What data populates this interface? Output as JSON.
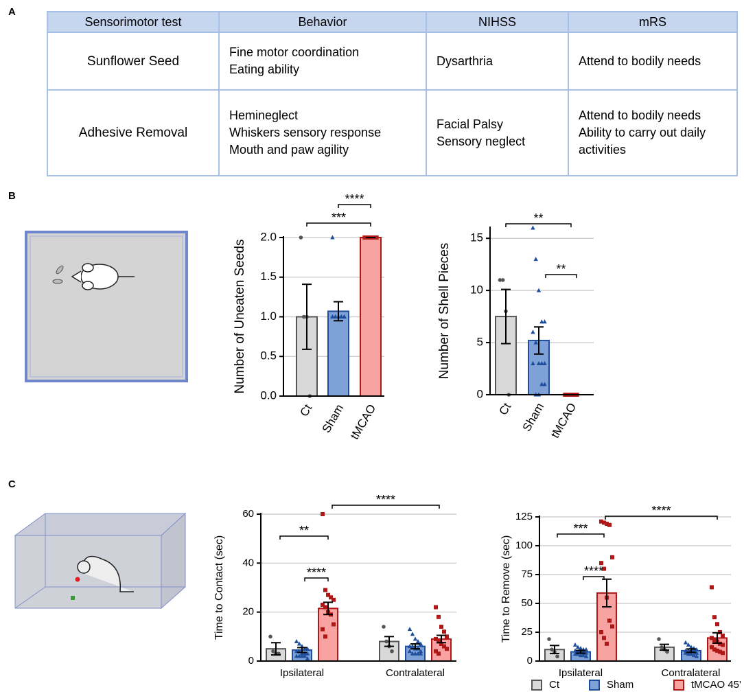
{
  "panels": [
    "A",
    "B",
    "C"
  ],
  "table": {
    "headers": [
      "Sensorimotor test",
      "Behavior",
      "NIHSS",
      "mRS"
    ],
    "rows": [
      [
        [
          "Sunflower Seed"
        ],
        [
          "Fine motor coordination",
          "Eating ability"
        ],
        [
          "Dysarthria"
        ],
        [
          "Attend to bodily needs"
        ]
      ],
      [
        [
          "Adhesive Removal"
        ],
        [
          "Hemineglect",
          "Whiskers sensory response",
          "Mouth and paw agility"
        ],
        [
          "Facial Palsy",
          "Sensory neglect"
        ],
        [
          "Attend to bodily needs",
          "Ability to carry out daily",
          "activities"
        ]
      ]
    ]
  },
  "chart_data": [
    {
      "type": "bar",
      "y_label": "Number of Uneaten Seeds",
      "categories": [
        "Ct",
        "Sham",
        "tMCAO"
      ],
      "values": [
        1.0,
        1.07,
        2.0
      ],
      "errors": [
        0.41,
        0.12,
        0
      ],
      "colors": [
        "#d9d9d9",
        "#7ea1d8",
        "#f8a2a2"
      ],
      "edge_colors": [
        "#555555",
        "#1f4e9c",
        "#b01818"
      ],
      "points": [
        [
          2,
          1,
          1,
          0
        ],
        [
          2,
          1,
          1,
          1,
          1,
          1,
          1,
          1,
          1,
          1,
          1,
          1,
          1,
          1,
          1
        ],
        [
          2,
          2,
          2,
          2,
          2,
          2,
          2,
          2,
          2,
          2,
          2,
          2
        ]
      ],
      "ylim": [
        0,
        2
      ],
      "yticks": [
        {
          "value": 0,
          "label": "0.0"
        },
        {
          "value": 0.5,
          "label": "0.5"
        },
        {
          "value": 1,
          "label": "1.0"
        },
        {
          "value": 1.5,
          "label": "1.5"
        },
        {
          "value": 2,
          "label": "2.0"
        }
      ],
      "grid": true,
      "significance": [
        "****",
        "***"
      ]
    },
    {
      "type": "bar",
      "y_label": "Number of Shell Pieces",
      "categories": [
        "Ct",
        "Sham",
        "tMCAO"
      ],
      "values": [
        7.5,
        5.2,
        0
      ],
      "errors": [
        2.6,
        1.3,
        0
      ],
      "colors": [
        "#d9d9d9",
        "#7ea1d8",
        "#f8a2a2"
      ],
      "edge_colors": [
        "#555555",
        "#1f4e9c",
        "#b01818"
      ],
      "points": [
        [
          11,
          11,
          8,
          0
        ],
        [
          16,
          13,
          10,
          7,
          7,
          6,
          5,
          3,
          3,
          3,
          3,
          0,
          0,
          1,
          1
        ],
        [
          0,
          0,
          0,
          0,
          0,
          0,
          0,
          0,
          0,
          0,
          0,
          0
        ]
      ],
      "ylim": [
        0,
        16
      ],
      "yticks": [
        0,
        5,
        10,
        15
      ],
      "grid": true,
      "significance": [
        "**",
        "**"
      ]
    },
    {
      "type": "bar",
      "y_label": "Time to Contact (sec)",
      "categories": [
        "Ipsilateral",
        "Contralateral"
      ],
      "series": [
        {
          "color": "#d9d9d9",
          "edge_color": "#555555",
          "values": [
            5,
            8
          ],
          "errors": [
            2.5,
            2
          ],
          "points": [
            [
              10,
              4,
              3,
              3
            ],
            [
              14,
              8,
              6,
              4
            ]
          ]
        },
        {
          "color": "#7ea1d8",
          "edge_color": "#1f4e9c",
          "values": [
            4.5,
            6
          ],
          "errors": [
            1,
            1
          ],
          "points": [
            [
              8,
              7,
              6,
              5,
              5,
              4,
              4,
              3,
              3,
              3,
              2,
              2,
              2,
              2,
              1
            ],
            [
              13,
              11,
              9,
              8,
              7,
              6,
              6,
              5,
              5,
              4,
              4,
              3,
              3,
              3,
              3
            ]
          ]
        },
        {
          "color": "#f8a2a2",
          "edge_color": "#b01818",
          "values": [
            21.5,
            9
          ],
          "errors": [
            2.5,
            1.5
          ],
          "points": [
            [
              60,
              29,
              27,
              26,
              25,
              23,
              22,
              20,
              19,
              15,
              13,
              10
            ],
            [
              22,
              18,
              14,
              12,
              10,
              9,
              8,
              7,
              6,
              5,
              4,
              3
            ]
          ]
        }
      ],
      "ylim": [
        0,
        60
      ],
      "yticks": [
        0,
        20,
        40,
        60
      ],
      "grid": true,
      "significance": [
        "**",
        "****",
        "****"
      ]
    },
    {
      "type": "bar",
      "y_label": "Time to Remove (sec)",
      "categories": [
        "Ipsilateral",
        "Contralateral"
      ],
      "series": [
        {
          "name": "Ct",
          "color": "#d9d9d9",
          "edge_color": "#555555",
          "values": [
            10,
            12
          ],
          "errors": [
            3.5,
            2.5
          ],
          "points": [
            [
              19,
              10,
              8,
              4
            ],
            [
              19,
              12,
              10,
              8
            ]
          ]
        },
        {
          "name": "Sham",
          "color": "#7ea1d8",
          "edge_color": "#1f4e9c",
          "values": [
            8,
            9
          ],
          "errors": [
            1.2,
            1.5
          ],
          "points": [
            [
              14,
              12,
              11,
              10,
              10,
              9,
              8,
              8,
              7,
              7,
              6,
              6,
              5,
              5,
              4
            ],
            [
              16,
              14,
              12,
              11,
              10,
              9,
              9,
              8,
              8,
              7,
              7,
              6,
              6,
              5,
              4
            ]
          ]
        },
        {
          "name": "tMCAO 45'",
          "color": "#f8a2a2",
          "edge_color": "#b01818",
          "values": [
            59,
            20
          ],
          "errors": [
            12,
            4.5
          ],
          "points": [
            [
              121,
              120,
              119,
              118,
              90,
              85,
              80,
              55,
              35,
              30,
              25,
              20,
              15
            ],
            [
              64,
              38,
              32,
              25,
              22,
              20,
              18,
              17,
              15,
              14,
              12,
              10,
              9,
              8,
              7
            ]
          ]
        }
      ],
      "ylim": [
        0,
        125
      ],
      "yticks": [
        0,
        25,
        50,
        75,
        100,
        125
      ],
      "grid": true,
      "legend": "bottom",
      "significance": [
        "***",
        "****",
        "****"
      ]
    }
  ]
}
